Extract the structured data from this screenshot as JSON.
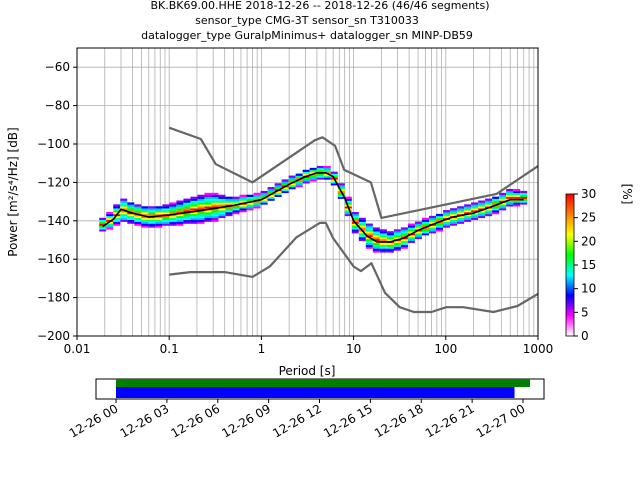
{
  "title": {
    "line1": "BK.BK69.00.HHE   2018-12-26 -- 2018-12-26  (46/46 segments)",
    "line2": "sensor_type CMG-3T sensor_sn T310033",
    "line3": "datalogger_type GuralpMinimus+ datalogger_sn MINP-DB59"
  },
  "chart_data": [
    {
      "type": "heatmap",
      "subtype": "probabilistic-power-spectral-density",
      "xlabel": "Period [s]",
      "ylabel": "Power [m²/s⁴/Hz] [dB]",
      "xscale": "log",
      "xlim": [
        0.01,
        1000
      ],
      "ylim": [
        -200,
        -50
      ],
      "xticks": [
        0.01,
        0.1,
        1,
        10,
        100,
        1000
      ],
      "xtick_labels": [
        "0.01",
        "0.1",
        "1",
        "10",
        "100",
        "1000"
      ],
      "yticks": [
        -60,
        -80,
        -100,
        -120,
        -140,
        -160,
        -180,
        -200
      ],
      "grid": true,
      "colorbar": {
        "label": "[%]",
        "ticks": [
          0,
          5,
          10,
          15,
          20,
          25,
          30
        ],
        "range": [
          0,
          30
        ],
        "colors": [
          "#ffffff",
          "#ff00ff",
          "#0000ff",
          "#00ffff",
          "#00ff00",
          "#ffff00",
          "#ff8000",
          "#ff0000"
        ]
      },
      "series": [
        {
          "name": "",
          "role": "noise-model-high",
          "color": "#666666",
          "x": [
            0.1,
            0.22,
            0.32,
            0.8,
            3.8,
            4.6,
            6.3,
            7.9,
            15.4,
            20,
            354.8,
            1000
          ],
          "y": [
            -91.5,
            -97.4,
            -110.5,
            -120,
            -98,
            -96.5,
            -101,
            -113.5,
            -120,
            -138.5,
            -126,
            -111.5
          ]
        },
        {
          "name": "",
          "role": "noise-model-low",
          "color": "#666666",
          "x": [
            0.1,
            0.17,
            0.4,
            0.8,
            1.24,
            2.4,
            4.3,
            5,
            6,
            10,
            12,
            15.6,
            21.9,
            31.6,
            45,
            70,
            101,
            154,
            328,
            600,
            1000
          ],
          "y": [
            -168,
            -166.7,
            -166.7,
            -169.2,
            -163.7,
            -148.6,
            -141.1,
            -141.1,
            -149,
            -163.8,
            -166.2,
            -162.1,
            -177.5,
            -185,
            -187.5,
            -187.5,
            -185,
            -185,
            -187.5,
            -184.4,
            -178
          ]
        },
        {
          "name": "",
          "role": "mode",
          "color": "#000000",
          "x": [
            0.019,
            0.025,
            0.03,
            0.04,
            0.06,
            0.1,
            0.2,
            0.5,
            1,
            2,
            3,
            4,
            5,
            6,
            8,
            10,
            14,
            18,
            25,
            35,
            50,
            80,
            120,
            200,
            300,
            500,
            700
          ],
          "y": [
            -143,
            -139,
            -134,
            -136,
            -138,
            -137,
            -135,
            -132,
            -129,
            -121,
            -117,
            -115,
            -115,
            -117,
            -128,
            -140,
            -148,
            -151,
            -151,
            -149,
            -145,
            -141,
            -138,
            -136,
            -133,
            -129,
            -129
          ]
        }
      ],
      "ppsd_cloud": [
        {
          "x": 0.019,
          "center": -142,
          "spread": 3
        },
        {
          "x": 0.025,
          "center": -139,
          "spread": 4
        },
        {
          "x": 0.03,
          "center": -134,
          "spread": 6
        },
        {
          "x": 0.04,
          "center": -136,
          "spread": 5
        },
        {
          "x": 0.06,
          "center": -138,
          "spread": 5
        },
        {
          "x": 0.1,
          "center": -137,
          "spread": 5
        },
        {
          "x": 0.2,
          "center": -134,
          "spread": 7
        },
        {
          "x": 0.3,
          "center": -133,
          "spread": 7
        },
        {
          "x": 0.5,
          "center": -132,
          "spread": 4
        },
        {
          "x": 1,
          "center": -129,
          "spread": 3
        },
        {
          "x": 2,
          "center": -121,
          "spread": 3
        },
        {
          "x": 3,
          "center": -117,
          "spread": 3
        },
        {
          "x": 4,
          "center": -115,
          "spread": 3
        },
        {
          "x": 5,
          "center": -115,
          "spread": 3
        },
        {
          "x": 6,
          "center": -117,
          "spread": 3
        },
        {
          "x": 8,
          "center": -128,
          "spread": 4
        },
        {
          "x": 10,
          "center": -140,
          "spread": 5
        },
        {
          "x": 14,
          "center": -147,
          "spread": 6
        },
        {
          "x": 18,
          "center": -150,
          "spread": 6
        },
        {
          "x": 25,
          "center": -151,
          "spread": 5
        },
        {
          "x": 35,
          "center": -149,
          "spread": 5
        },
        {
          "x": 50,
          "center": -145,
          "spread": 4
        },
        {
          "x": 80,
          "center": -141,
          "spread": 4
        },
        {
          "x": 120,
          "center": -138,
          "spread": 4
        },
        {
          "x": 200,
          "center": -135,
          "spread": 4
        },
        {
          "x": 300,
          "center": -133,
          "spread": 4
        },
        {
          "x": 500,
          "center": -128,
          "spread": 4
        },
        {
          "x": 700,
          "center": -128,
          "spread": 3
        }
      ]
    },
    {
      "type": "bar",
      "subtype": "data-coverage-timeline",
      "xlim": [
        "2018-12-26 00:00",
        "2018-12-27 01:00"
      ],
      "xtick_labels": [
        "12-26 00",
        "12-26 03",
        "12-26 06",
        "12-26 09",
        "12-26 12",
        "12-26 15",
        "12-26 18",
        "12-26 21",
        "12-27 00"
      ],
      "bars": [
        {
          "color": "#008000",
          "start": "2018-12-26 00:00",
          "end": "2018-12-27 00:25"
        },
        {
          "color": "#0000ff",
          "start": "2018-12-26 00:00",
          "end": "2018-12-26 23:30"
        }
      ]
    }
  ]
}
